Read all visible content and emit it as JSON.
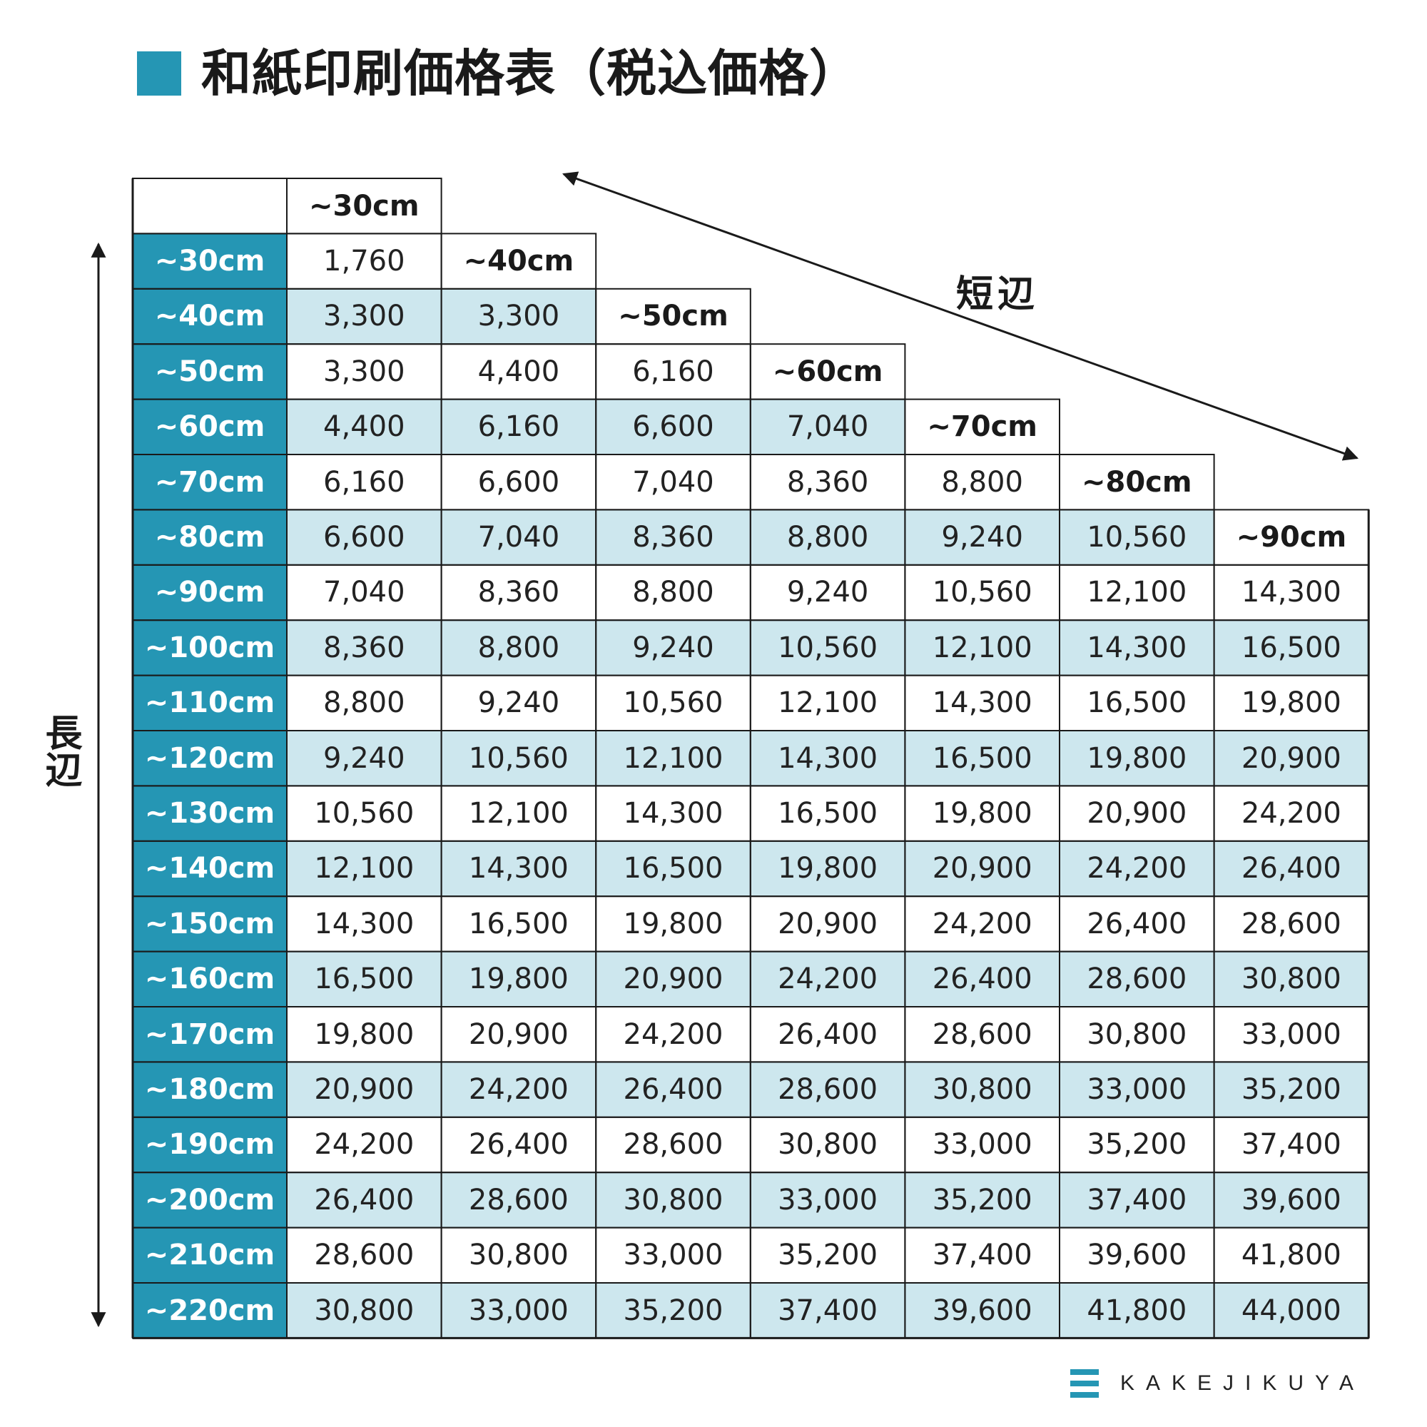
{
  "title": "和紙印刷価格表（税込価格）",
  "axis_labels": {
    "long_side": "長辺",
    "short_side": "短辺"
  },
  "brand": {
    "name": "KAKEJIKUYA",
    "logo_icon": "three-bars-icon"
  },
  "colors": {
    "accent": "#2596b4",
    "shade": "#cde7ee",
    "border": "#1a1a1a"
  },
  "price_table": {
    "col_headers": [
      "~30cm",
      "~40cm",
      "~50cm",
      "~60cm",
      "~70cm",
      "~80cm",
      "~90cm"
    ],
    "rows": [
      {
        "label": "~30cm",
        "values": [
          "1,760"
        ]
      },
      {
        "label": "~40cm",
        "values": [
          "3,300",
          "3,300"
        ]
      },
      {
        "label": "~50cm",
        "values": [
          "3,300",
          "4,400",
          "6,160"
        ]
      },
      {
        "label": "~60cm",
        "values": [
          "4,400",
          "6,160",
          "6,600",
          "7,040"
        ]
      },
      {
        "label": "~70cm",
        "values": [
          "6,160",
          "6,600",
          "7,040",
          "8,360",
          "8,800"
        ]
      },
      {
        "label": "~80cm",
        "values": [
          "6,600",
          "7,040",
          "8,360",
          "8,800",
          "9,240",
          "10,560"
        ]
      },
      {
        "label": "~90cm",
        "values": [
          "7,040",
          "8,360",
          "8,800",
          "9,240",
          "10,560",
          "12,100",
          "14,300"
        ]
      },
      {
        "label": "~100cm",
        "values": [
          "8,360",
          "8,800",
          "9,240",
          "10,560",
          "12,100",
          "14,300",
          "16,500"
        ]
      },
      {
        "label": "~110cm",
        "values": [
          "8,800",
          "9,240",
          "10,560",
          "12,100",
          "14,300",
          "16,500",
          "19,800"
        ]
      },
      {
        "label": "~120cm",
        "values": [
          "9,240",
          "10,560",
          "12,100",
          "14,300",
          "16,500",
          "19,800",
          "20,900"
        ]
      },
      {
        "label": "~130cm",
        "values": [
          "10,560",
          "12,100",
          "14,300",
          "16,500",
          "19,800",
          "20,900",
          "24,200"
        ]
      },
      {
        "label": "~140cm",
        "values": [
          "12,100",
          "14,300",
          "16,500",
          "19,800",
          "20,900",
          "24,200",
          "26,400"
        ]
      },
      {
        "label": "~150cm",
        "values": [
          "14,300",
          "16,500",
          "19,800",
          "20,900",
          "24,200",
          "26,400",
          "28,600"
        ]
      },
      {
        "label": "~160cm",
        "values": [
          "16,500",
          "19,800",
          "20,900",
          "24,200",
          "26,400",
          "28,600",
          "30,800"
        ]
      },
      {
        "label": "~170cm",
        "values": [
          "19,800",
          "20,900",
          "24,200",
          "26,400",
          "28,600",
          "30,800",
          "33,000"
        ]
      },
      {
        "label": "~180cm",
        "values": [
          "20,900",
          "24,200",
          "26,400",
          "28,600",
          "30,800",
          "33,000",
          "35,200"
        ]
      },
      {
        "label": "~190cm",
        "values": [
          "24,200",
          "26,400",
          "28,600",
          "30,800",
          "33,000",
          "35,200",
          "37,400"
        ]
      },
      {
        "label": "~200cm",
        "values": [
          "26,400",
          "28,600",
          "30,800",
          "33,000",
          "35,200",
          "37,400",
          "39,600"
        ]
      },
      {
        "label": "~210cm",
        "values": [
          "28,600",
          "30,800",
          "33,000",
          "35,200",
          "37,400",
          "39,600",
          "41,800"
        ]
      },
      {
        "label": "~220cm",
        "values": [
          "30,800",
          "33,000",
          "35,200",
          "37,400",
          "39,600",
          "41,800",
          "44,000"
        ]
      }
    ]
  }
}
